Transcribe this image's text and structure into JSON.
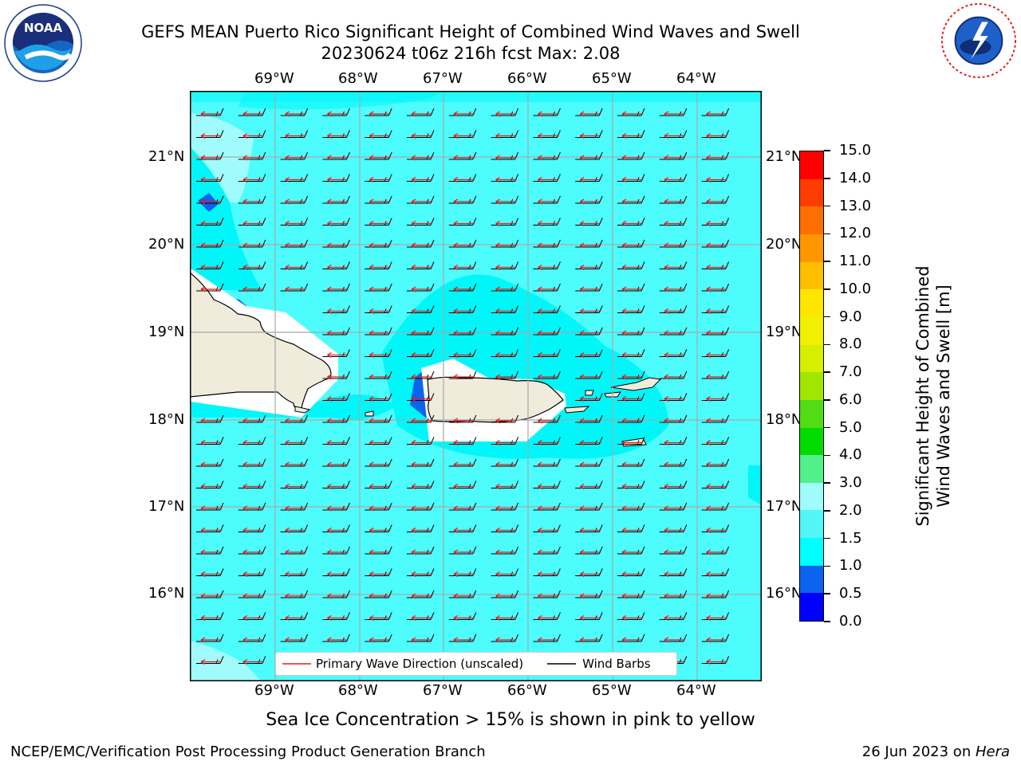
{
  "title": {
    "line1": "GEFS MEAN Puerto Rico Significant Height of Combined Wind Waves and Swell",
    "line2": "20230624 t06z 216h fcst   Max: 2.08"
  },
  "logos": {
    "noaa": {
      "text": "NOAA",
      "icon": "noaa-logo-icon",
      "ring_text": "NATIONAL OCEANIC AND ATMOSPHERIC ADMINISTRATION · U.S. DEPARTMENT OF COMMERCE"
    },
    "nws": {
      "icon": "nws-logo-icon",
      "ring_text": "NATIONAL WEATHER SERVICE"
    }
  },
  "map": {
    "lon_labels": [
      "69°W",
      "68°W",
      "67°W",
      "66°W",
      "65°W",
      "64°W"
    ],
    "lat_labels": [
      "21°N",
      "20°N",
      "19°N",
      "18°N",
      "17°N",
      "16°N"
    ],
    "land_color": "#efecdc",
    "sea_color": "#4dfcfc",
    "calm_color": "#00f6f8",
    "wave_arrow_color": "#e51c1c",
    "barb_color": "#000000"
  },
  "legend": {
    "wave_label": "Primary Wave Direction (unscaled)",
    "barb_label": "Wind Barbs"
  },
  "colorbar": {
    "title_line1": "Significant Height of Combined",
    "title_line2": "Wind Waves and Swell [m]",
    "ticks": [
      "0.0",
      "0.5",
      "1.0",
      "1.5",
      "2.0",
      "3.0",
      "4.0",
      "5.0",
      "6.0",
      "7.0",
      "8.0",
      "9.0",
      "10.0",
      "11.0",
      "12.0",
      "13.0",
      "14.0",
      "15.0"
    ],
    "colors": [
      "#0000ff",
      "#0a64f0",
      "#00ffff",
      "#52f6f6",
      "#a0fcfc",
      "#52f08a",
      "#00dc00",
      "#52dc14",
      "#a0e600",
      "#d4f000",
      "#f0f000",
      "#ffe600",
      "#ffbe00",
      "#ff9600",
      "#ff6e00",
      "#ff3c00",
      "#ff0000"
    ]
  },
  "caption": "Sea Ice Concentration > 15% is shown in pink to yellow",
  "footer": {
    "left": "NCEP/EMC/Verification Post Processing Product Generation Branch",
    "right_date": "26 Jun 2023 on ",
    "right_host": "Hera"
  },
  "chart_data": {
    "type": "heatmap",
    "title": "GEFS MEAN Puerto Rico Significant Height of Combined Wind Waves and Swell",
    "subtitle": "20230624 t06z 216h fcst   Max: 2.08",
    "max_value": 2.08,
    "units": "m",
    "lon_range": [
      -70.0,
      -63.25
    ],
    "lat_range": [
      15.0,
      21.75
    ],
    "dominant_band": "1.5-2.0",
    "bands_present": [
      "0.5-1.0",
      "1.0-1.5",
      "1.5-2.0",
      "2.0-3.0"
    ]
  }
}
